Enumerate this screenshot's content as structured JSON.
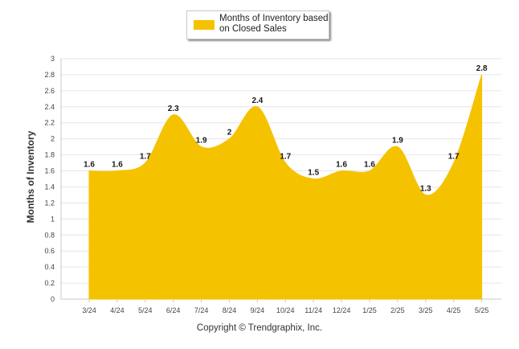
{
  "chart_data": {
    "type": "area",
    "categories": [
      "3/24",
      "4/24",
      "5/24",
      "6/24",
      "7/24",
      "8/24",
      "9/24",
      "10/24",
      "11/24",
      "12/24",
      "1/25",
      "2/25",
      "3/25",
      "4/25",
      "5/25"
    ],
    "series": [
      {
        "name": "Months of Inventory based\non Closed Sales",
        "values": [
          1.6,
          1.6,
          1.7,
          2.3,
          1.9,
          2.0,
          2.4,
          1.7,
          1.5,
          1.6,
          1.6,
          1.9,
          1.3,
          1.7,
          2.8
        ],
        "data_labels": [
          "1.6",
          "1.6",
          "1.7",
          "2.3",
          "1.9",
          "2",
          "2.4",
          "1.7",
          "1.5",
          "1.6",
          "1.6",
          "1.9",
          "1.3",
          "1.7",
          "2.8"
        ],
        "color": "#F5C200"
      }
    ],
    "ylabel": "Months of Inventory",
    "xlabel": "",
    "ylim": [
      0,
      3
    ],
    "yticks": [
      "0",
      "0.2",
      "0.4",
      "0.6",
      "0.8",
      "1",
      "1.2",
      "1.4",
      "1.6",
      "1.8",
      "2",
      "2.2",
      "2.4",
      "2.6",
      "2.8",
      "3"
    ],
    "grid": true,
    "legend_position": "top-center"
  },
  "footer": {
    "copyright": "Copyright © Trendgraphix, Inc."
  }
}
